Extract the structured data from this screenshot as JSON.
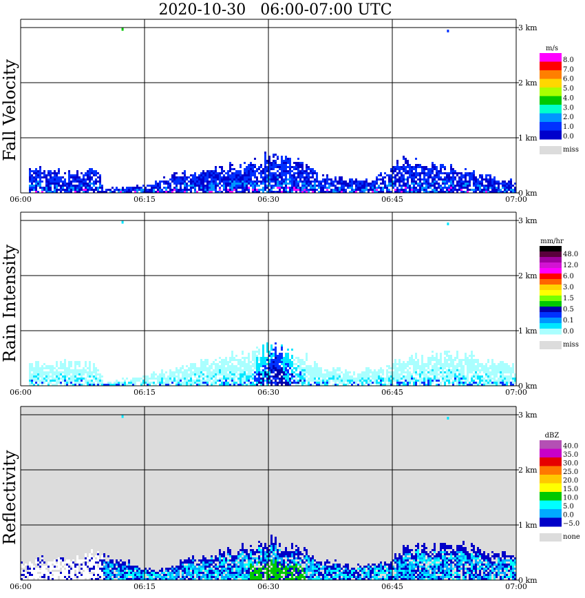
{
  "title": "2020-10-30   06:00-07:00 UTC",
  "x_ticks": [
    "06:00",
    "06:15",
    "06:30",
    "06:45",
    "07:00"
  ],
  "y_ticks": [
    "0 km",
    "1 km",
    "2 km",
    "3 km"
  ],
  "chart_data": [
    {
      "type": "heatmap",
      "title": "Fall Velocity",
      "xlabel": "",
      "ylabel": "",
      "x_range": [
        "06:00",
        "07:00"
      ],
      "y_range_km": [
        0,
        3
      ],
      "grid": true,
      "background": "#ffffff",
      "colorbar": {
        "unit": "m/s",
        "labels": [
          "8.0",
          "7.0",
          "6.0",
          "5.0",
          "4.0",
          "3.0",
          "2.0",
          "1.0",
          "0.0"
        ],
        "colors": [
          "#ff00ff",
          "#ff0000",
          "#ff7f00",
          "#ffd700",
          "#aaff00",
          "#00c800",
          "#00ffcc",
          "#0096ff",
          "#0032ff",
          "#0000cc"
        ],
        "miss_label": "miss",
        "miss_color": "#dcdcdc"
      },
      "echo_top_km": [
        [
          2.5,
          0.45
        ],
        [
          5,
          0.35
        ],
        [
          8,
          0.4
        ],
        [
          9,
          0.5
        ],
        [
          10,
          0.05
        ],
        [
          16,
          0.15
        ],
        [
          18,
          0.3
        ],
        [
          20,
          0.35
        ],
        [
          24,
          0.45
        ],
        [
          28,
          0.55
        ],
        [
          30,
          0.65
        ],
        [
          32,
          0.6
        ],
        [
          34,
          0.55
        ],
        [
          36,
          0.3
        ],
        [
          38,
          0.25
        ],
        [
          40,
          0.25
        ],
        [
          42,
          0.2
        ],
        [
          44,
          0.35
        ],
        [
          46,
          0.6
        ],
        [
          48,
          0.55
        ],
        [
          50,
          0.5
        ],
        [
          52,
          0.45
        ],
        [
          54,
          0.4
        ],
        [
          56,
          0.3
        ],
        [
          58,
          0.25
        ],
        [
          59.5,
          0.2
        ]
      ],
      "features": [
        {
          "label": "weak echo near 3 km",
          "time_min": 12.3,
          "height_km": 2.98
        },
        {
          "label": "weak echo near 3 km",
          "time_min": 51.7,
          "height_km": 2.95
        }
      ]
    },
    {
      "type": "heatmap",
      "title": "Rain Intensity",
      "xlabel": "",
      "ylabel": "",
      "x_range": [
        "06:00",
        "07:00"
      ],
      "y_range_km": [
        0,
        3
      ],
      "grid": true,
      "background": "#ffffff",
      "colorbar": {
        "unit": "mm/hr",
        "labels": [
          "48.0",
          "12.0",
          "6.0",
          "3.0",
          "1.5",
          "0.5",
          "0.1",
          "0.0"
        ],
        "colors": [
          "#000000",
          "#5a003c",
          "#a000a0",
          "#d214d2",
          "#ff00ff",
          "#ff0000",
          "#ff6400",
          "#ffd200",
          "#ffff00",
          "#78ff00",
          "#00c800",
          "#0000aa",
          "#0032ff",
          "#0096ff",
          "#00e6ff",
          "#aaffff"
        ],
        "miss_label": "miss",
        "miss_color": "#dcdcdc"
      },
      "echo_top_km": [
        [
          2.5,
          0.4
        ],
        [
          8,
          0.4
        ],
        [
          9,
          0.45
        ],
        [
          10,
          0.05
        ],
        [
          16,
          0.2
        ],
        [
          20,
          0.35
        ],
        [
          24,
          0.5
        ],
        [
          28,
          0.6
        ],
        [
          30,
          0.7
        ],
        [
          32,
          0.65
        ],
        [
          34,
          0.55
        ],
        [
          36,
          0.35
        ],
        [
          40,
          0.25
        ],
        [
          44,
          0.3
        ],
        [
          46,
          0.5
        ],
        [
          50,
          0.55
        ],
        [
          54,
          0.55
        ],
        [
          57,
          0.45
        ],
        [
          59.5,
          0.35
        ]
      ],
      "features": [
        {
          "label": "max rain core",
          "time_min": 31,
          "height_km": 0.2
        },
        {
          "label": "weak echo near 3 km",
          "time_min": 12.3,
          "height_km": 2.98
        },
        {
          "label": "weak echo near 3 km",
          "time_min": 51.7,
          "height_km": 2.95
        }
      ]
    },
    {
      "type": "heatmap",
      "title": "Reflectivity",
      "xlabel": "",
      "ylabel": "",
      "x_range": [
        "06:00",
        "07:00"
      ],
      "y_range_km": [
        0,
        3
      ],
      "grid": true,
      "background": "#dcdcdc",
      "colorbar": {
        "unit": "dBZ",
        "labels": [
          "40.0",
          "35.0",
          "30.0",
          "25.0",
          "20.0",
          "15.0",
          "10.0",
          "5.0",
          "0.0",
          "−5.0"
        ],
        "colors": [
          "#b450b4",
          "#c800c8",
          "#e60000",
          "#ff7800",
          "#ffc800",
          "#ffff00",
          "#00c800",
          "#00ffff",
          "#00aaff",
          "#0000c8"
        ],
        "miss_label": "none",
        "miss_color": "#dcdcdc"
      },
      "echo_top_km": [
        [
          0.5,
          0.3
        ],
        [
          2.5,
          0.4
        ],
        [
          6,
          0.35
        ],
        [
          8,
          0.45
        ],
        [
          9,
          0.5
        ],
        [
          16,
          0.15
        ],
        [
          20,
          0.35
        ],
        [
          24,
          0.5
        ],
        [
          28,
          0.6
        ],
        [
          30,
          0.7
        ],
        [
          32,
          0.65
        ],
        [
          34,
          0.6
        ],
        [
          36,
          0.35
        ],
        [
          40,
          0.25
        ],
        [
          44,
          0.3
        ],
        [
          46,
          0.55
        ],
        [
          50,
          0.6
        ],
        [
          54,
          0.6
        ],
        [
          57,
          0.5
        ],
        [
          59.5,
          0.45
        ]
      ],
      "features": [
        {
          "label": "convective core",
          "time_min": 31,
          "height_km": 0.2
        },
        {
          "label": "weak echo near 3 km",
          "time_min": 12.3,
          "height_km": 2.98
        },
        {
          "label": "weak echo near 3 km",
          "time_min": 51.7,
          "height_km": 2.95
        }
      ]
    }
  ]
}
